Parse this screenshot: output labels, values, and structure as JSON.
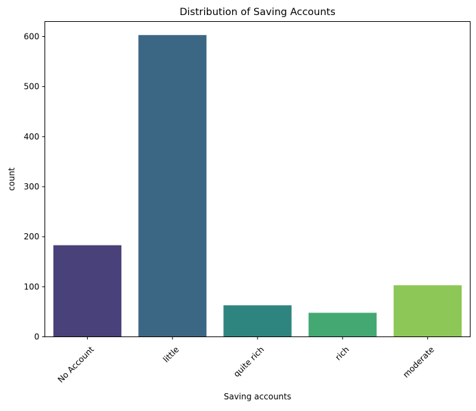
{
  "chart_data": {
    "type": "bar",
    "title": "Distribution of Saving Accounts",
    "xlabel": "Saving accounts",
    "ylabel": "count",
    "categories": [
      "No Account",
      "little",
      "quite rich",
      "rich",
      "moderate"
    ],
    "values": [
      183,
      603,
      63,
      48,
      103
    ],
    "colors": [
      "#48417a",
      "#3c6784",
      "#2e857f",
      "#44a873",
      "#8dc757"
    ],
    "ylim": [
      0,
      630
    ],
    "yticks": [
      0,
      100,
      200,
      300,
      400,
      500,
      600
    ],
    "grid": false,
    "legend": "none"
  }
}
